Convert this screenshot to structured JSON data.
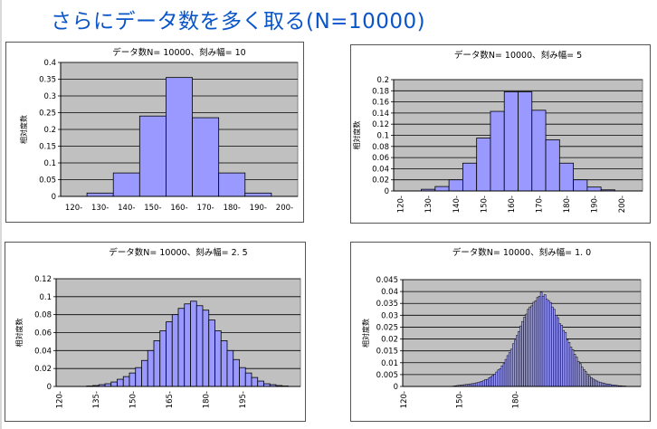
{
  "slide": {
    "title": "さらにデータ数を多く取る(N=10000)"
  },
  "chart_data": [
    {
      "type": "bar",
      "title": "データ数N= 10000、刻み幅= 10",
      "ylabel": "相対度数",
      "tick_labels": [
        "120-",
        "130-",
        "140-",
        "150-",
        "160-",
        "170-",
        "180-",
        "190-",
        "200-"
      ],
      "x_start": 120,
      "bin_width": 10,
      "values": [
        0,
        0.01,
        0.07,
        0.24,
        0.355,
        0.235,
        0.07,
        0.01,
        0
      ],
      "ylim": [
        0,
        0.4
      ],
      "yticks": [
        "0",
        "0.05",
        "0.1",
        "0.15",
        "0.2",
        "0.25",
        "0.3",
        "0.35",
        "0.4"
      ],
      "xlabel_rotated": false,
      "grid": true,
      "colors": {
        "bar": "#9999ff",
        "plot_bg": "#c0c0c0",
        "edge": "#000000"
      }
    },
    {
      "type": "bar",
      "title": "データ数N= 10000、刻み幅= 5",
      "ylabel": "相対度数",
      "tick_labels": [
        "120-",
        "130-",
        "140-",
        "150-",
        "160-",
        "170-",
        "180-",
        "190-",
        "200-"
      ],
      "x_start": 120,
      "bin_width": 5,
      "values": [
        0,
        0,
        0.003,
        0.008,
        0.02,
        0.05,
        0.095,
        0.143,
        0.178,
        0.178,
        0.145,
        0.092,
        0.05,
        0.02,
        0.007,
        0.002,
        0,
        0
      ],
      "ylim": [
        0,
        0.2
      ],
      "yticks": [
        "0",
        "0.02",
        "0.04",
        "0.06",
        "0.08",
        "0.1",
        "0.12",
        "0.14",
        "0.16",
        "0.18",
        "0.2"
      ],
      "xlabel_rotated": true,
      "grid": true,
      "colors": {
        "bar": "#9999ff",
        "plot_bg": "#c0c0c0",
        "edge": "#000000"
      }
    },
    {
      "type": "bar",
      "title": "データ数N= 10000、刻み幅= 2. 5",
      "ylabel": "相対度数",
      "tick_labels": [
        "120-",
        "135-",
        "150-",
        "165-",
        "180-",
        "195-"
      ],
      "x_start": 120,
      "bin_width": 2.5,
      "values": [
        0,
        0,
        0,
        0,
        0,
        0.0005,
        0.001,
        0.002,
        0.003,
        0.005,
        0.008,
        0.011,
        0.015,
        0.021,
        0.029,
        0.04,
        0.051,
        0.062,
        0.072,
        0.08,
        0.087,
        0.092,
        0.095,
        0.09,
        0.085,
        0.074,
        0.062,
        0.051,
        0.04,
        0.03,
        0.021,
        0.015,
        0.01,
        0.006,
        0.003,
        0.002,
        0.001,
        0.0005,
        0,
        0
      ],
      "ylim": [
        0,
        0.12
      ],
      "yticks": [
        "0",
        "0.02",
        "0.04",
        "0.06",
        "0.08",
        "0.1",
        "0.12"
      ],
      "xlabel_rotated": true,
      "grid": true,
      "colors": {
        "bar": "#9999ff",
        "plot_bg": "#c0c0c0",
        "edge": "#000000"
      }
    },
    {
      "type": "bar",
      "title": "データ数N= 10000、刻み幅= 1. 0",
      "ylabel": "相対度数",
      "tick_labels": [
        "120-",
        "150-",
        "180-"
      ],
      "x_start": 120,
      "bin_width": 1,
      "values": [
        0,
        0,
        0,
        0,
        0,
        0,
        0,
        0,
        0,
        0,
        0,
        0,
        0,
        0,
        0,
        0,
        0,
        0,
        0,
        0,
        0,
        0,
        0,
        0,
        0,
        0,
        0,
        0.0002,
        0.0003,
        0.0004,
        0.0005,
        0.0006,
        0.0007,
        0.0008,
        0.0009,
        0.001,
        0.0011,
        0.0012,
        0.0013,
        0.0015,
        0.0017,
        0.0019,
        0.0022,
        0.0024,
        0.0029,
        0.003,
        0.0036,
        0.0041,
        0.0046,
        0.0052,
        0.0061,
        0.007,
        0.0075,
        0.0087,
        0.0096,
        0.0114,
        0.013,
        0.0142,
        0.0157,
        0.018,
        0.0195,
        0.0215,
        0.0232,
        0.0255,
        0.0274,
        0.0292,
        0.0305,
        0.0325,
        0.0335,
        0.034,
        0.0355,
        0.0361,
        0.0375,
        0.038,
        0.0397,
        0.038,
        0.0387,
        0.0367,
        0.0362,
        0.0354,
        0.0335,
        0.0325,
        0.03,
        0.029,
        0.0265,
        0.0258,
        0.0236,
        0.0228,
        0.0198,
        0.0186,
        0.0166,
        0.0155,
        0.0136,
        0.0124,
        0.0106,
        0.0096,
        0.0081,
        0.0071,
        0.0062,
        0.0051,
        0.0043,
        0.0037,
        0.0031,
        0.0027,
        0.0023,
        0.0019,
        0.0017,
        0.0015,
        0.0013,
        0.0011,
        0.001,
        0.0009,
        0.0007,
        0.0006,
        0.0005,
        0.0004,
        0.0003,
        0.0003,
        0.0002,
        0.0002,
        0.0001,
        0,
        0,
        0,
        0,
        0,
        0,
        0
      ],
      "ylim": [
        0,
        0.045
      ],
      "yticks": [
        "0",
        "0.005",
        "0.01",
        "0.015",
        "0.02",
        "0.025",
        "0.03",
        "0.035",
        "0.04",
        "0.045"
      ],
      "xlabel_rotated": true,
      "grid": true,
      "colors": {
        "bar": "#9999ff",
        "plot_bg": "#c0c0c0",
        "edge": "#000000"
      }
    }
  ]
}
